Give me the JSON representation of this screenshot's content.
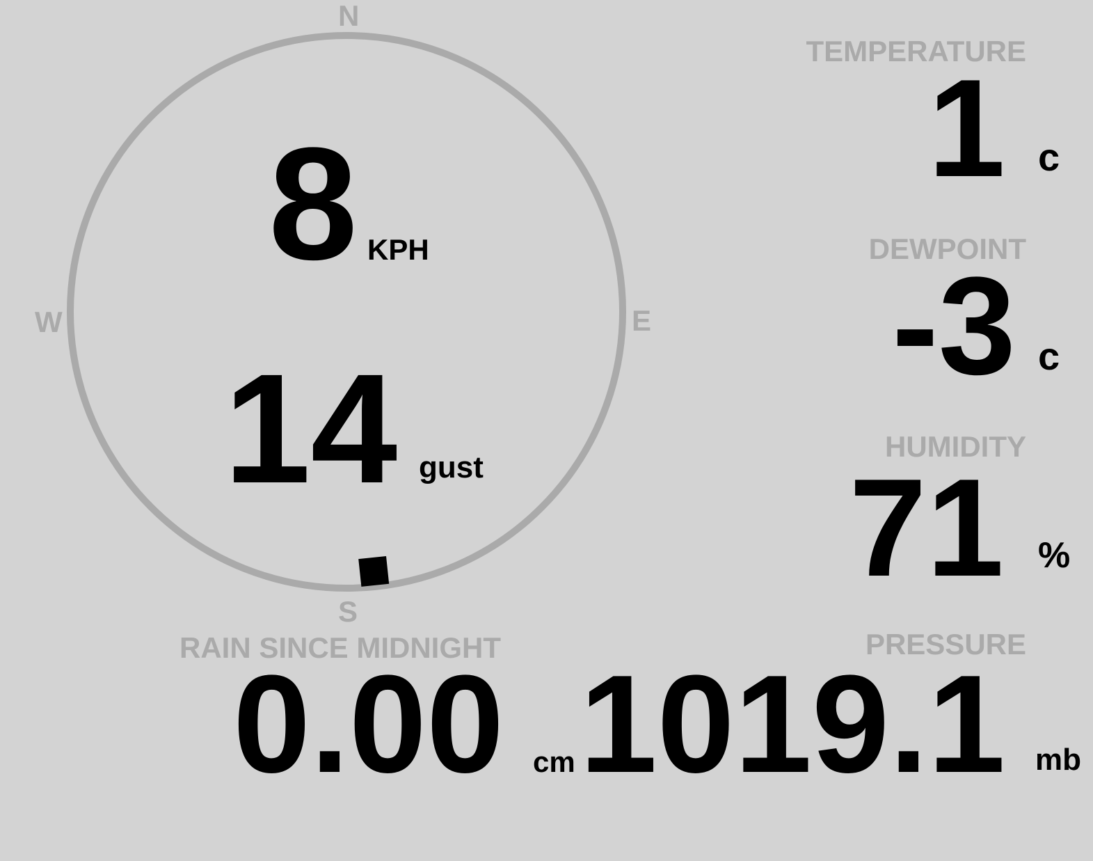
{
  "compass": {
    "north": "N",
    "south": "S",
    "east": "E",
    "west": "W",
    "wind_direction_deg": 174,
    "ring_color": "#aaaaaa"
  },
  "wind": {
    "speed": "8",
    "speed_unit": "KPH",
    "gust": "14",
    "gust_unit": "gust"
  },
  "temperature": {
    "label": "TEMPERATURE",
    "value": "1",
    "unit": "c"
  },
  "dewpoint": {
    "label": "DEWPOINT",
    "value": "-3",
    "unit": "c"
  },
  "humidity": {
    "label": "HUMIDITY",
    "value": "71",
    "unit": "%"
  },
  "pressure": {
    "label": "PRESSURE",
    "value": "1019.1",
    "unit": "mb"
  },
  "rain": {
    "label": "RAIN SINCE MIDNIGHT",
    "value": "0.00",
    "unit": "cm"
  },
  "colors": {
    "background": "#d3d3d3",
    "label": "#aaaaaa",
    "value": "#000000"
  }
}
